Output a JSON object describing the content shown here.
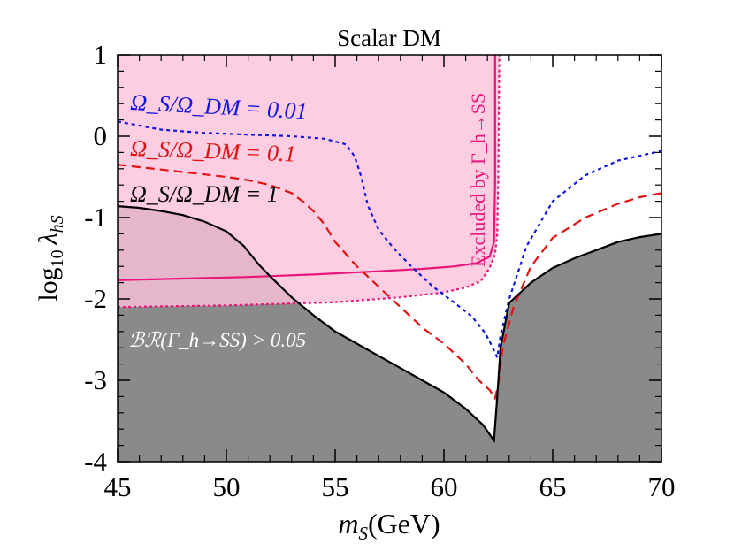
{
  "chart_data": {
    "type": "line",
    "title": "Scalar DM",
    "xlabel": "m_S(GeV)",
    "ylabel": "log10 λ_hS",
    "xlim": [
      45,
      70
    ],
    "ylim": [
      -4,
      1
    ],
    "xticks": [
      "45",
      "50",
      "55",
      "60",
      "65",
      "70"
    ],
    "yticks": [
      "1",
      "0",
      "-1",
      "-2",
      "-3",
      "-4"
    ],
    "grid": false,
    "colors": {
      "pink_fill": "#fcc1da",
      "pink_line": "#e8177b",
      "gray_fill": "#8a8a8a",
      "overlap_fill": "#9a6679",
      "blue": "#1414e0",
      "red": "#e01414",
      "black": "#000000"
    },
    "regions": [
      {
        "name": "br_invisible_excluded",
        "label": "ℬℛ(Γ_h→SS) > 0.05",
        "boundary": [
          [
            45,
            -0.86
          ],
          [
            46,
            -0.88
          ],
          [
            47,
            -0.92
          ],
          [
            48,
            -0.97
          ],
          [
            49,
            -1.05
          ],
          [
            50,
            -1.17
          ],
          [
            50.8,
            -1.35
          ],
          [
            51.5,
            -1.58
          ],
          [
            52,
            -1.72
          ],
          [
            53,
            -1.98
          ],
          [
            54,
            -2.2
          ],
          [
            55,
            -2.4
          ],
          [
            56,
            -2.55
          ],
          [
            57,
            -2.7
          ],
          [
            58,
            -2.85
          ],
          [
            59,
            -3.0
          ],
          [
            60,
            -3.15
          ],
          [
            61,
            -3.35
          ],
          [
            61.8,
            -3.55
          ],
          [
            62.3,
            -3.74
          ],
          [
            62.45,
            -3.2
          ],
          [
            62.6,
            -2.6
          ],
          [
            63,
            -2.05
          ],
          [
            64,
            -1.8
          ],
          [
            65,
            -1.62
          ],
          [
            66,
            -1.5
          ],
          [
            67,
            -1.4
          ],
          [
            68,
            -1.3
          ],
          [
            69,
            -1.24
          ],
          [
            70,
            -1.2
          ]
        ]
      },
      {
        "name": "higgs_width_excluded",
        "label": "Excluded by Γ_h→SS",
        "boundary_lower": [
          [
            45,
            -2.1
          ],
          [
            50,
            -2.08
          ],
          [
            55,
            -2.04
          ],
          [
            58,
            -1.98
          ],
          [
            60,
            -1.92
          ],
          [
            61,
            -1.86
          ],
          [
            61.7,
            -1.78
          ],
          [
            62.1,
            -1.62
          ],
          [
            62.35,
            -1.45
          ],
          [
            62.45,
            -1.2
          ],
          [
            62.5,
            -0.5
          ],
          [
            62.52,
            0.2
          ],
          [
            62.55,
            1.0
          ]
        ],
        "boundary_solid": [
          [
            45,
            -1.77
          ],
          [
            48,
            -1.75
          ],
          [
            51,
            -1.73
          ],
          [
            54,
            -1.7
          ],
          [
            57,
            -1.66
          ],
          [
            59,
            -1.63
          ],
          [
            60.5,
            -1.6
          ],
          [
            61.5,
            -1.56
          ],
          [
            62.1,
            -1.48
          ],
          [
            62.3,
            -1.3
          ],
          [
            62.35,
            -0.6
          ],
          [
            62.35,
            1.0
          ]
        ]
      }
    ],
    "series": [
      {
        "name": "omega_0.01",
        "label": "Ω_S/Ω_DM = 0.01",
        "style": "dotted",
        "x": [
          45,
          47,
          49,
          51,
          53,
          54.5,
          55.5,
          55.9,
          56.2,
          56.5,
          57,
          57.7,
          58.5,
          59.5,
          60.5,
          61.3,
          61.9,
          62.25,
          62.45,
          62.6,
          63,
          63.8,
          65,
          66.5,
          68,
          70
        ],
        "y": [
          0.18,
          0.08,
          0.04,
          0.02,
          0.0,
          -0.03,
          -0.1,
          -0.25,
          -0.5,
          -0.85,
          -1.15,
          -1.38,
          -1.6,
          -1.85,
          -2.05,
          -2.22,
          -2.42,
          -2.6,
          -2.72,
          -2.45,
          -2.0,
          -1.35,
          -0.8,
          -0.48,
          -0.3,
          -0.18
        ]
      },
      {
        "name": "omega_0.1",
        "label": "Ω_S/Ω_DM = 0.1",
        "style": "dashed",
        "x": [
          45,
          46,
          47,
          48,
          49,
          50,
          51,
          52,
          53,
          53.5,
          54,
          54.5,
          55,
          56,
          57,
          58,
          59,
          60,
          61,
          61.6,
          62.1,
          62.35,
          62.5,
          62.7,
          63.2,
          64,
          65,
          66.5,
          68,
          69,
          70
        ],
        "y": [
          -0.35,
          -0.38,
          -0.41,
          -0.44,
          -0.47,
          -0.5,
          -0.54,
          -0.6,
          -0.7,
          -0.8,
          -0.92,
          -1.08,
          -1.3,
          -1.6,
          -1.85,
          -2.1,
          -2.35,
          -2.55,
          -2.8,
          -3.0,
          -3.12,
          -3.22,
          -3.05,
          -2.6,
          -2.1,
          -1.6,
          -1.25,
          -1.0,
          -0.83,
          -0.75,
          -0.7
        ]
      },
      {
        "name": "omega_1",
        "label": "Ω_S/Ω_DM = 1",
        "style": "solid",
        "x": [
          45,
          46,
          47,
          48,
          49,
          50,
          50.8,
          51.5,
          52,
          53,
          54,
          55,
          56,
          57,
          58,
          59,
          60,
          61,
          61.8,
          62.3,
          62.45,
          62.6,
          63,
          64,
          65,
          66,
          67,
          68,
          69,
          70
        ],
        "y": [
          -0.86,
          -0.88,
          -0.92,
          -0.97,
          -1.05,
          -1.17,
          -1.35,
          -1.58,
          -1.72,
          -1.98,
          -2.2,
          -2.4,
          -2.55,
          -2.7,
          -2.85,
          -3.0,
          -3.15,
          -3.35,
          -3.55,
          -3.74,
          -3.2,
          -2.6,
          -2.05,
          -1.8,
          -1.62,
          -1.5,
          -1.4,
          -1.3,
          -1.24,
          -1.2
        ]
      }
    ],
    "annotations": {
      "omega_001": "Ω_S/Ω_DM = 0.01",
      "omega_01": "Ω_S/Ω_DM = 0.1",
      "omega_1": "Ω_S/Ω_DM = 1",
      "br_label": "ℬℛ(Γ_h→SS) > 0.05",
      "excluded_label": "Excluded by Γ_h→SS"
    }
  }
}
